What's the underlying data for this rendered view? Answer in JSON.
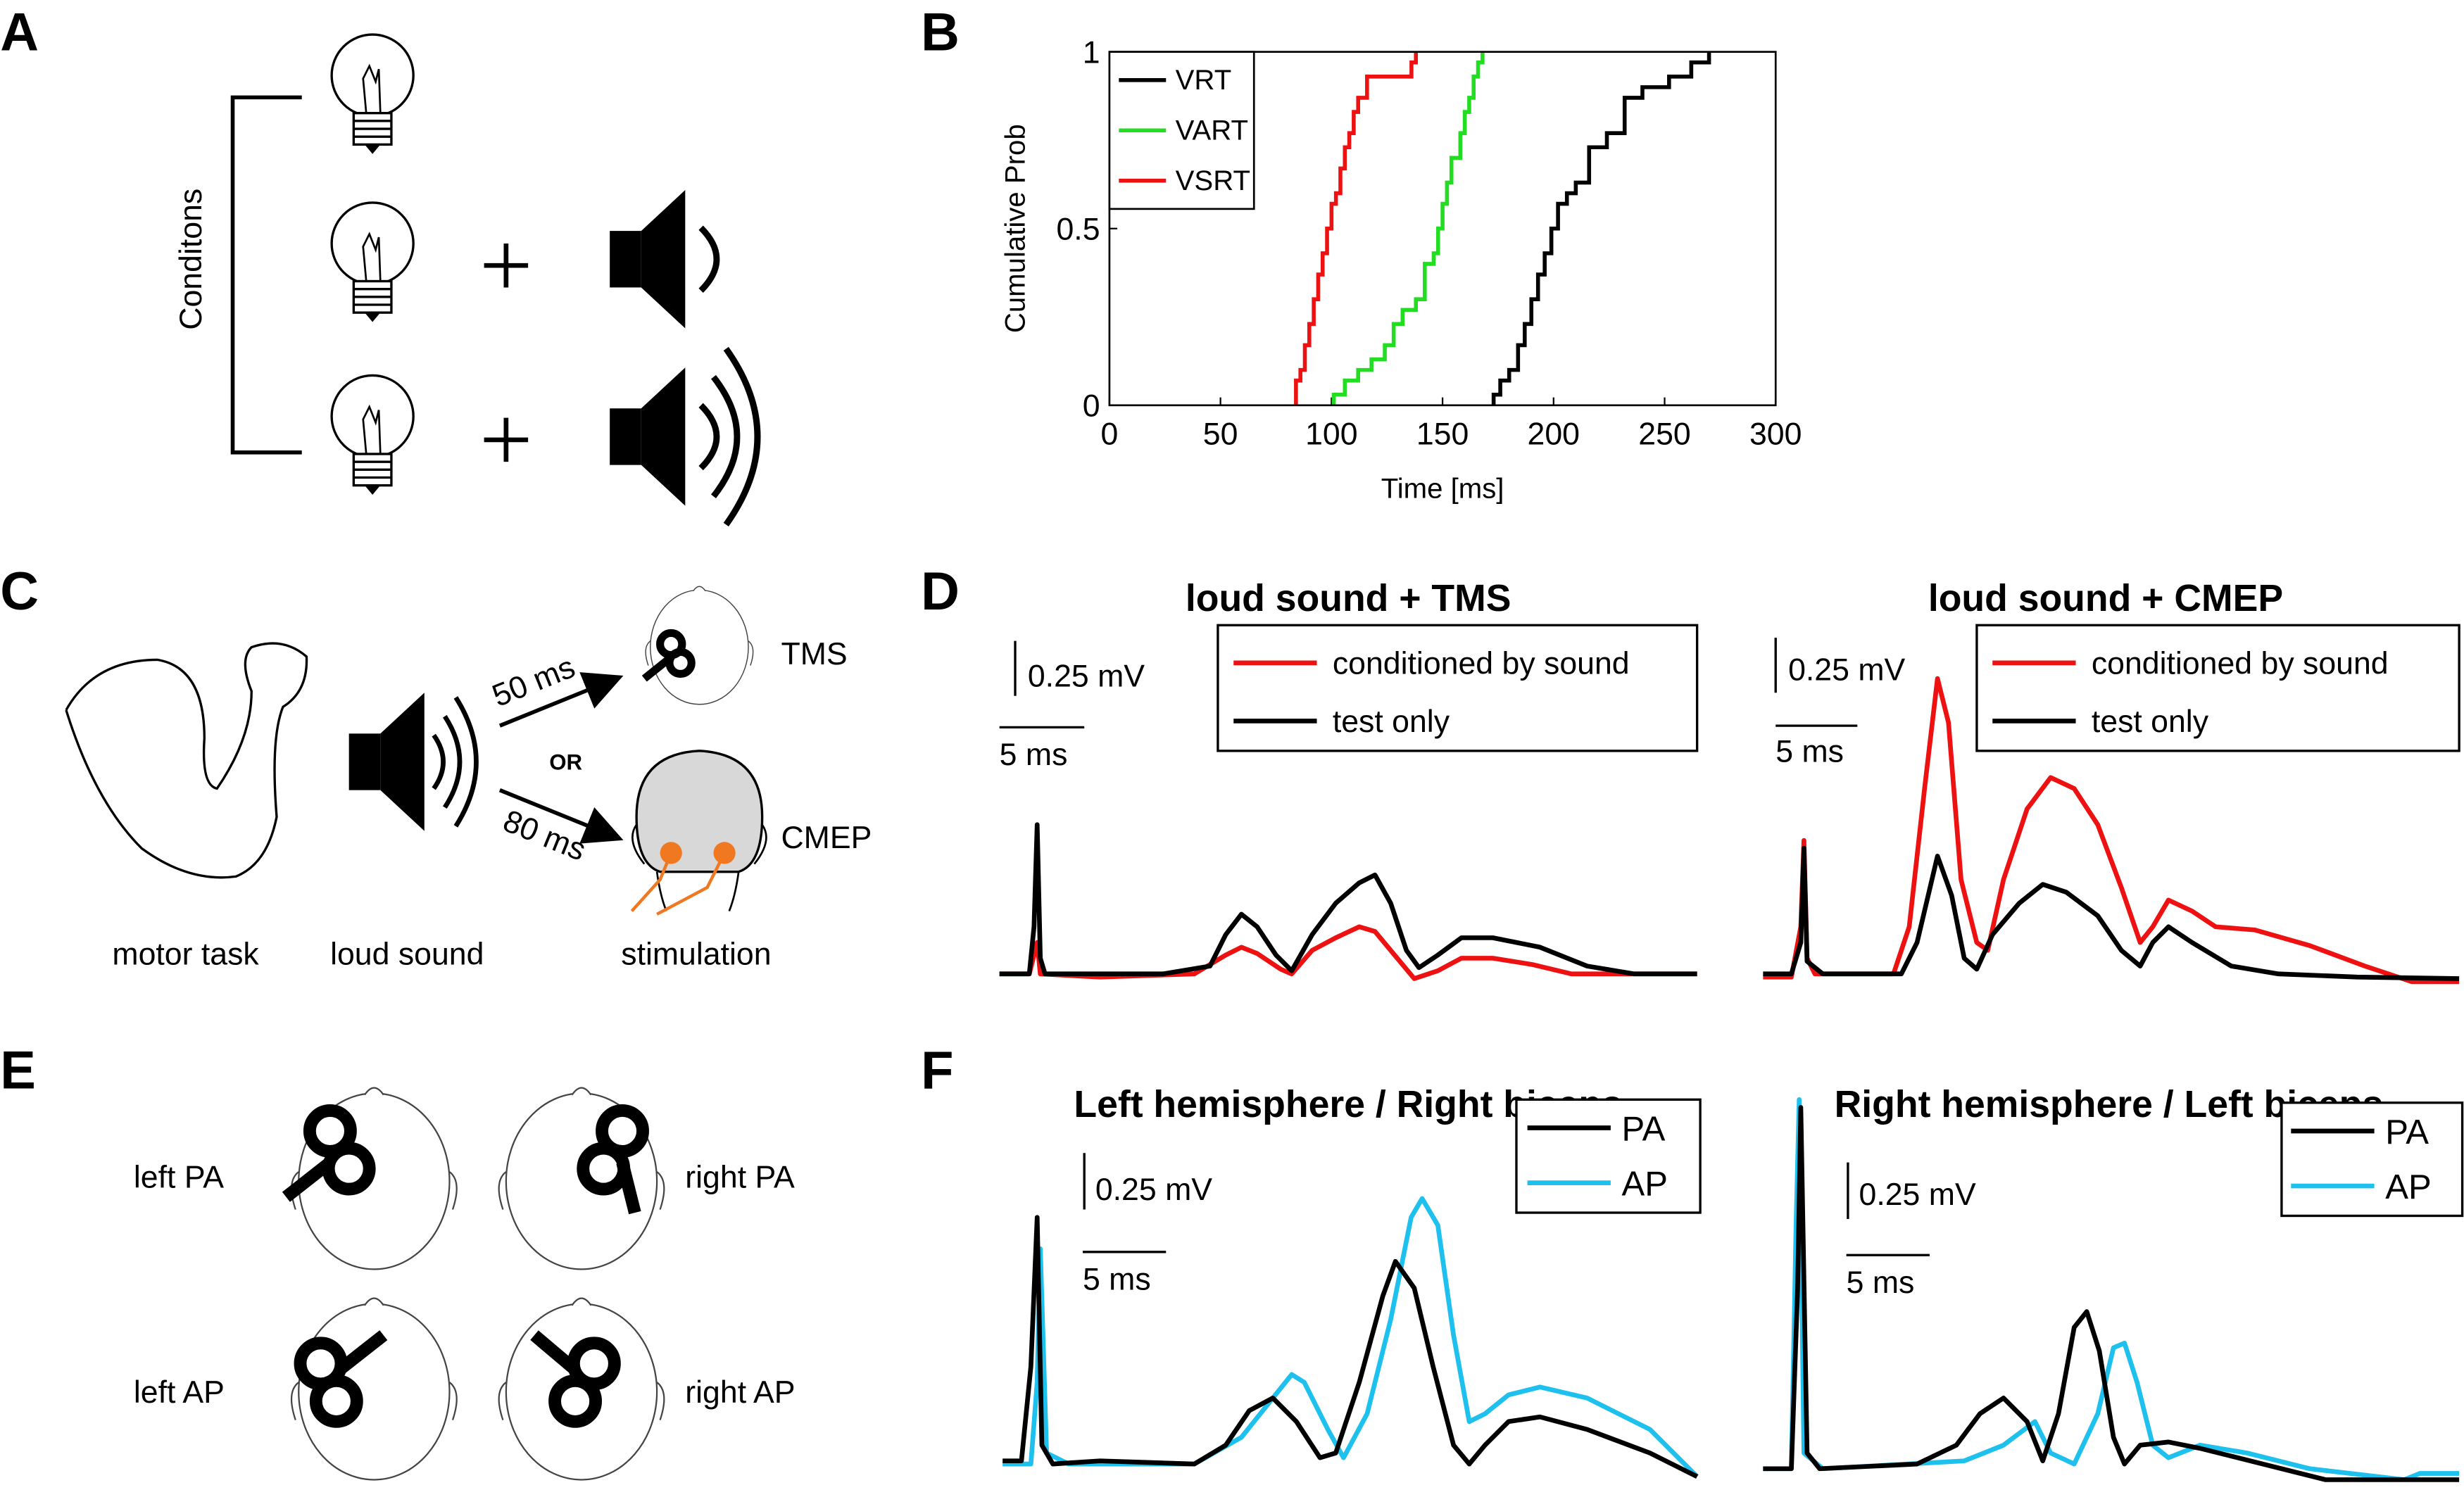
{
  "panel_labels": [
    "A",
    "B",
    "C",
    "D",
    "E",
    "F"
  ],
  "panel_a": {
    "axis_label": "Conditons"
  },
  "chart_data": {
    "type": "step",
    "xlabel": "Time [ms]",
    "ylabel": "Cumulative Prob",
    "xlim": [
      0,
      300
    ],
    "ylim": [
      0,
      1
    ],
    "xticks": [
      0,
      50,
      100,
      150,
      200,
      250,
      300
    ],
    "yticks": [
      0,
      0.5,
      1
    ],
    "legend": "upper-left",
    "series": [
      {
        "name": "VRT",
        "color": "#000000",
        "x": [
          173,
          176,
          180,
          184,
          187,
          190,
          193,
          196,
          199,
          202,
          206,
          210,
          216,
          224,
          232,
          240,
          252,
          262,
          270
        ],
        "values": [
          0.03,
          0.07,
          0.1,
          0.17,
          0.23,
          0.3,
          0.37,
          0.43,
          0.5,
          0.57,
          0.6,
          0.63,
          0.73,
          0.77,
          0.87,
          0.9,
          0.93,
          0.97,
          1
        ]
      },
      {
        "name": "VART",
        "color": "#22dd22",
        "x": [
          101,
          106,
          112,
          118,
          124,
          128,
          132,
          138,
          142,
          146,
          148,
          150,
          152,
          154,
          158,
          160,
          162,
          164,
          166,
          168
        ],
        "values": [
          0.03,
          0.07,
          0.1,
          0.13,
          0.17,
          0.23,
          0.27,
          0.3,
          0.4,
          0.43,
          0.5,
          0.57,
          0.63,
          0.7,
          0.77,
          0.83,
          0.87,
          0.93,
          0.97,
          1
        ]
      },
      {
        "name": "VSRT",
        "color": "#ee1111",
        "x": [
          84,
          86,
          88,
          90,
          92,
          94,
          96,
          98,
          100,
          102,
          104,
          106,
          108,
          110,
          112,
          116,
          136,
          138
        ],
        "values": [
          0.07,
          0.1,
          0.17,
          0.23,
          0.3,
          0.37,
          0.43,
          0.5,
          0.57,
          0.6,
          0.67,
          0.73,
          0.77,
          0.83,
          0.87,
          0.93,
          0.97,
          1
        ]
      }
    ]
  },
  "panel_c": {
    "labels": [
      "motor task",
      "loud sound",
      "stimulation"
    ],
    "delays": [
      "50 ms",
      "80 ms"
    ],
    "or": "OR",
    "targets": [
      "TMS",
      "CMEP"
    ]
  },
  "panel_d": {
    "plots": [
      {
        "title": "loud sound + TMS",
        "scale_y": "0.25 mV",
        "scale_x": "5 ms",
        "legend": [
          "conditioned by sound",
          "test only"
        ]
      },
      {
        "title": "loud sound + CMEP",
        "scale_y": "0.25 mV",
        "scale_x": "5 ms",
        "legend": [
          "conditioned by sound",
          "test only"
        ]
      }
    ]
  },
  "panel_e": {
    "labels": [
      "left PA",
      "right PA",
      "left AP",
      "right AP"
    ]
  },
  "panel_f": {
    "plots": [
      {
        "title": "Left hemisphere / Right biceps",
        "scale_y": "0.25 mV",
        "scale_x": "5 ms",
        "legend": [
          "PA",
          "AP"
        ]
      },
      {
        "title": "Right hemisphere / Left biceps",
        "scale_y": "0.25 mV",
        "scale_x": "5 ms",
        "legend": [
          "PA",
          "AP"
        ]
      }
    ]
  }
}
